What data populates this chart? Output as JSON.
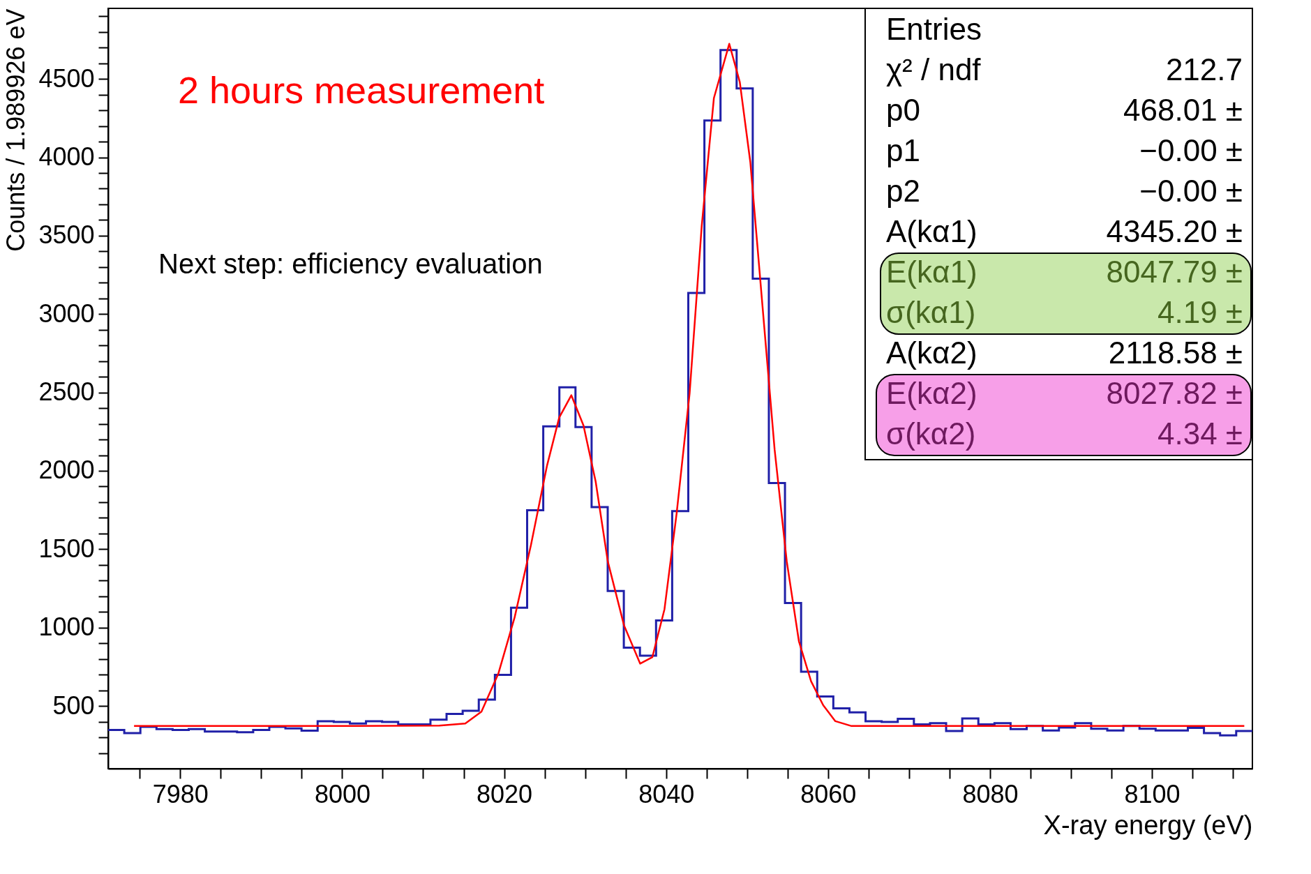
{
  "chart_data": {
    "type": "histogram",
    "xlabel": "X-ray energy (eV)",
    "ylabel": "Counts / 1.989926 eV",
    "xlim": [
      7971.1,
      8112.4
    ],
    "ylim": [
      100,
      4950
    ],
    "xticks": [
      {
        "value": 7975,
        "label": null
      },
      7980,
      {
        "value": 7985,
        "label": null
      },
      {
        "value": 7990,
        "label": null
      },
      {
        "value": 7995,
        "label": null
      },
      8000,
      {
        "value": 8005,
        "label": null
      },
      {
        "value": 8010,
        "label": null
      },
      {
        "value": 8015,
        "label": null
      },
      8020,
      {
        "value": 8025,
        "label": null
      },
      {
        "value": 8030,
        "label": null
      },
      {
        "value": 8035,
        "label": null
      },
      8040,
      {
        "value": 8045,
        "label": null
      },
      {
        "value": 8050,
        "label": null
      },
      {
        "value": 8055,
        "label": null
      },
      8060,
      {
        "value": 8065,
        "label": null
      },
      {
        "value": 8070,
        "label": null
      },
      {
        "value": 8075,
        "label": null
      },
      8080,
      {
        "value": 8085,
        "label": null
      },
      {
        "value": 8090,
        "label": null
      },
      {
        "value": 8095,
        "label": null
      },
      8100,
      {
        "value": 8105,
        "label": null
      },
      {
        "value": 8110,
        "label": null
      }
    ],
    "yticks": [
      {
        "value": 200,
        "label": null
      },
      {
        "value": 300,
        "label": null
      },
      {
        "value": 400,
        "label": null
      },
      500,
      {
        "value": 600,
        "label": null
      },
      {
        "value": 700,
        "label": null
      },
      {
        "value": 800,
        "label": null
      },
      {
        "value": 900,
        "label": null
      },
      1000,
      {
        "value": 1100,
        "label": null
      },
      {
        "value": 1200,
        "label": null
      },
      {
        "value": 1300,
        "label": null
      },
      {
        "value": 1400,
        "label": null
      },
      1500,
      {
        "value": 1600,
        "label": null
      },
      {
        "value": 1700,
        "label": null
      },
      {
        "value": 1800,
        "label": null
      },
      {
        "value": 1900,
        "label": null
      },
      2000,
      {
        "value": 2100,
        "label": null
      },
      {
        "value": 2200,
        "label": null
      },
      {
        "value": 2300,
        "label": null
      },
      {
        "value": 2400,
        "label": null
      },
      2500,
      {
        "value": 2600,
        "label": null
      },
      {
        "value": 2700,
        "label": null
      },
      {
        "value": 2800,
        "label": null
      },
      {
        "value": 2900,
        "label": null
      },
      3000,
      {
        "value": 3100,
        "label": null
      },
      {
        "value": 3200,
        "label": null
      },
      {
        "value": 3300,
        "label": null
      },
      {
        "value": 3400,
        "label": null
      },
      3500,
      {
        "value": 3600,
        "label": null
      },
      {
        "value": 3700,
        "label": null
      },
      {
        "value": 3800,
        "label": null
      },
      {
        "value": 3900,
        "label": null
      },
      4000,
      {
        "value": 4100,
        "label": null
      },
      {
        "value": 4200,
        "label": null
      },
      {
        "value": 4300,
        "label": null
      },
      {
        "value": 4400,
        "label": null
      },
      4500,
      {
        "value": 4600,
        "label": null
      },
      {
        "value": 4700,
        "label": null
      },
      {
        "value": 4800,
        "label": null
      },
      {
        "value": 4900,
        "label": null
      }
    ],
    "series": [
      {
        "type": "histogram",
        "color": "#2020a8",
        "bins": [
          7971.1,
          7973.09,
          7975.08,
          7977.07,
          7979.06,
          7981.05,
          7983.04,
          7985.03,
          7987.02,
          7989.01,
          7991.0,
          7992.99,
          7994.98,
          7996.97,
          7998.96,
          8000.95,
          8002.94,
          8004.93,
          8006.92,
          8008.91,
          8010.9,
          8012.89,
          8014.88,
          8016.87,
          8018.86,
          8020.85,
          8022.84,
          8024.83,
          8026.82,
          8028.81,
          8030.8,
          8032.79,
          8034.78,
          8036.77,
          8038.76,
          8040.75,
          8042.74,
          8044.73,
          8046.72,
          8048.71,
          8050.7,
          8052.69,
          8054.68,
          8056.67,
          8058.66,
          8060.65,
          8062.64,
          8064.63,
          8066.62,
          8068.61,
          8070.6,
          8072.59,
          8074.58,
          8076.57,
          8078.56,
          8080.55,
          8082.54,
          8084.53,
          8086.52,
          8088.51,
          8090.5,
          8092.49,
          8094.48,
          8096.47,
          8098.46,
          8100.45,
          8102.44,
          8104.43,
          8106.42,
          8108.41,
          8110.4,
          8112.39
        ],
        "values": [
          347,
          327,
          367,
          352,
          347,
          352,
          337,
          337,
          332,
          347,
          367,
          357,
          342,
          403,
          398,
          388,
          403,
          398,
          383,
          383,
          413,
          449,
          469,
          541,
          699,
          1127,
          1749,
          2284,
          2533,
          2279,
          1769,
          1234,
          872,
          821,
          1045,
          1743,
          3135,
          4235,
          4684,
          4439,
          3226,
          1922,
          1157,
          719,
          561,
          485,
          459,
          403,
          398,
          418,
          383,
          390,
          340,
          420,
          383,
          390,
          352,
          372,
          344,
          362,
          390,
          355,
          344,
          372,
          355,
          344,
          344,
          360,
          327,
          312,
          340
        ]
      },
      {
        "type": "line",
        "color": "#ff0000",
        "x": [
          7974.3,
          8000,
          8012,
          8015.2,
          8017.2,
          8019.3,
          8021.3,
          8023.3,
          8025.3,
          8026.8,
          8028.3,
          8029.8,
          8031.3,
          8032.8,
          8034.8,
          8036.8,
          8038.3,
          8039.8,
          8041.3,
          8042.9,
          8044.4,
          8045.9,
          8047.8,
          8049.1,
          8050.4,
          8051.9,
          8053.4,
          8054.9,
          8056.4,
          8057.9,
          8059.4,
          8060.9,
          8062.9,
          8080,
          8111.4
        ],
        "values": [
          372,
          372,
          375,
          388,
          464,
          709,
          1066,
          1524,
          2034,
          2340,
          2482,
          2289,
          1932,
          1422,
          1015,
          770,
          811,
          1117,
          1728,
          2492,
          3562,
          4377,
          4724,
          4480,
          3970,
          3053,
          2136,
          1422,
          913,
          658,
          505,
          403,
          372,
          372,
          372
        ]
      }
    ],
    "annotations": [
      "2 hours measurement",
      "Next step: efficiency evaluation",
      "Entries",
      "χ² / ndf",
      "212.7",
      "p0",
      "468.01 ±",
      "p1",
      "−0.00 ±",
      "p2",
      "−0.00 ±",
      "A(kα1)",
      "4345.20 ±",
      "E(kα1)",
      "8047.79 ±",
      "σ(kα1)",
      "4.19 ±",
      "A(kα2)",
      "2118.58 ±",
      "E(kα2)",
      "8027.82 ±",
      "σ(kα2)",
      "4.34 ±"
    ]
  }
}
